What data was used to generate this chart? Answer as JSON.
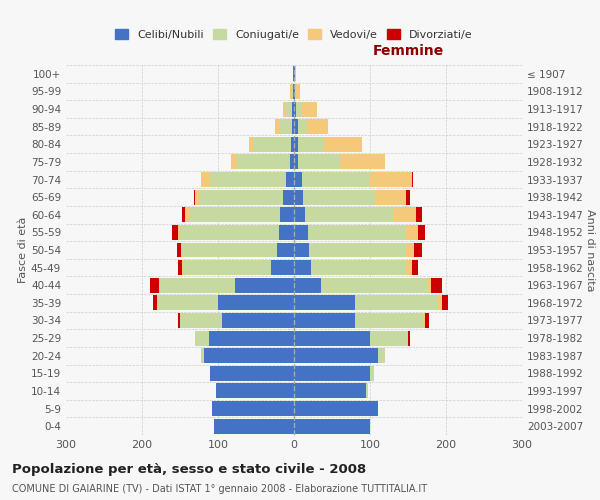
{
  "age_groups": [
    "0-4",
    "5-9",
    "10-14",
    "15-19",
    "20-24",
    "25-29",
    "30-34",
    "35-39",
    "40-44",
    "45-49",
    "50-54",
    "55-59",
    "60-64",
    "65-69",
    "70-74",
    "75-79",
    "80-84",
    "85-89",
    "90-94",
    "95-99",
    "100+"
  ],
  "birth_years": [
    "2003-2007",
    "1998-2002",
    "1993-1997",
    "1988-1992",
    "1983-1987",
    "1978-1982",
    "1973-1977",
    "1968-1972",
    "1963-1967",
    "1958-1962",
    "1953-1957",
    "1948-1952",
    "1943-1947",
    "1938-1942",
    "1933-1937",
    "1928-1932",
    "1923-1927",
    "1918-1922",
    "1913-1917",
    "1908-1912",
    "≤ 1907"
  ],
  "males": {
    "celibi": [
      105,
      108,
      102,
      110,
      118,
      112,
      95,
      100,
      78,
      30,
      22,
      20,
      18,
      15,
      10,
      5,
      4,
      2,
      2,
      1,
      1
    ],
    "coniugati": [
      0,
      0,
      0,
      0,
      5,
      18,
      55,
      80,
      100,
      115,
      125,
      130,
      120,
      110,
      100,
      70,
      50,
      18,
      8,
      2,
      0
    ],
    "vedovi": [
      0,
      0,
      0,
      0,
      0,
      0,
      0,
      0,
      0,
      2,
      2,
      3,
      5,
      5,
      12,
      8,
      5,
      5,
      5,
      2,
      0
    ],
    "divorziati": [
      0,
      0,
      0,
      0,
      0,
      0,
      2,
      5,
      12,
      5,
      5,
      8,
      5,
      2,
      0,
      0,
      0,
      0,
      0,
      0,
      0
    ]
  },
  "females": {
    "nubili": [
      100,
      110,
      95,
      100,
      110,
      100,
      80,
      80,
      35,
      22,
      20,
      18,
      15,
      12,
      10,
      5,
      5,
      5,
      2,
      1,
      1
    ],
    "coniugate": [
      0,
      0,
      2,
      5,
      10,
      50,
      90,
      110,
      140,
      125,
      128,
      130,
      115,
      95,
      90,
      55,
      35,
      12,
      8,
      2,
      0
    ],
    "vedove": [
      0,
      0,
      0,
      0,
      0,
      0,
      2,
      5,
      5,
      8,
      10,
      15,
      30,
      40,
      55,
      60,
      50,
      28,
      20,
      5,
      1
    ],
    "divorziate": [
      0,
      0,
      0,
      0,
      0,
      2,
      5,
      8,
      15,
      8,
      10,
      10,
      8,
      5,
      2,
      0,
      0,
      0,
      0,
      0,
      0
    ]
  },
  "colors": {
    "celibi": "#4472C4",
    "coniugati": "#c5d9a0",
    "vedovi": "#f5c97a",
    "divorziati": "#cc0000"
  },
  "xlim": 300,
  "title": "Popolazione per età, sesso e stato civile - 2008",
  "subtitle": "COMUNE DI GAIARINE (TV) - Dati ISTAT 1° gennaio 2008 - Elaborazione TUTTITALIA.IT",
  "ylabel_left": "Fasce di età",
  "ylabel_right": "Anni di nascita",
  "xlabel_right": "Femmine",
  "femmine_color": "#8b0000",
  "background_color": "#f7f7f7"
}
